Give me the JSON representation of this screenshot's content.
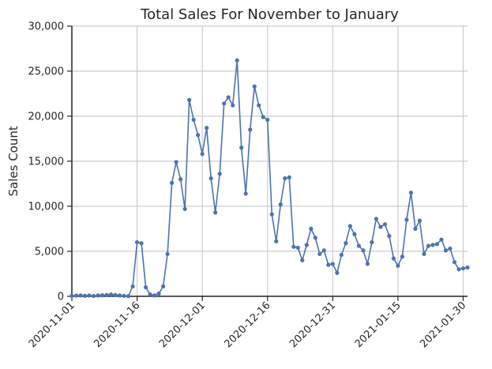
{
  "chart_data": {
    "type": "line",
    "title": "Total Sales For November to January",
    "xlabel": "",
    "ylabel": "Sales Count",
    "ylim": [
      0,
      30000
    ],
    "xlim": [
      "2020-11-01",
      "2021-01-31"
    ],
    "grid": true,
    "x_ticks": [
      "2020-11-01",
      "2020-11-16",
      "2020-12-01",
      "2020-12-16",
      "2020-12-31",
      "2021-01-15",
      "2021-01-30"
    ],
    "y_ticks": [
      "0",
      "5,000",
      "10,000",
      "15,000",
      "20,000",
      "25,000",
      "30,000"
    ],
    "series": [
      {
        "color": "#4c72b0",
        "x": [
          "2020-11-01",
          "2020-11-02",
          "2020-11-03",
          "2020-11-04",
          "2020-11-05",
          "2020-11-06",
          "2020-11-07",
          "2020-11-08",
          "2020-11-09",
          "2020-11-10",
          "2020-11-11",
          "2020-11-12",
          "2020-11-13",
          "2020-11-14",
          "2020-11-15",
          "2020-11-16",
          "2020-11-17",
          "2020-11-18",
          "2020-11-19",
          "2020-11-20",
          "2020-11-21",
          "2020-11-22",
          "2020-11-23",
          "2020-11-24",
          "2020-11-25",
          "2020-11-26",
          "2020-11-27",
          "2020-11-28",
          "2020-11-29",
          "2020-11-30",
          "2020-12-01",
          "2020-12-02",
          "2020-12-03",
          "2020-12-04",
          "2020-12-05",
          "2020-12-06",
          "2020-12-07",
          "2020-12-08",
          "2020-12-09",
          "2020-12-10",
          "2020-12-11",
          "2020-12-12",
          "2020-12-13",
          "2020-12-14",
          "2020-12-15",
          "2020-12-16",
          "2020-12-17",
          "2020-12-18",
          "2020-12-19",
          "2020-12-20",
          "2020-12-21",
          "2020-12-22",
          "2020-12-23",
          "2020-12-24",
          "2020-12-25",
          "2020-12-26",
          "2020-12-27",
          "2020-12-28",
          "2020-12-29",
          "2020-12-30",
          "2020-12-31",
          "2021-01-01",
          "2021-01-02",
          "2021-01-03",
          "2021-01-04",
          "2021-01-05",
          "2021-01-06",
          "2021-01-07",
          "2021-01-08",
          "2021-01-09",
          "2021-01-10",
          "2021-01-11",
          "2021-01-12",
          "2021-01-13",
          "2021-01-14",
          "2021-01-15",
          "2021-01-16",
          "2021-01-17",
          "2021-01-18",
          "2021-01-19",
          "2021-01-20",
          "2021-01-21",
          "2021-01-22",
          "2021-01-23",
          "2021-01-24",
          "2021-01-25",
          "2021-01-26",
          "2021-01-27",
          "2021-01-28",
          "2021-01-29",
          "2021-01-30",
          "2021-01-31"
        ],
        "values": [
          50,
          80,
          100,
          60,
          90,
          40,
          100,
          120,
          150,
          200,
          150,
          100,
          50,
          20,
          1100,
          6000,
          5900,
          1000,
          200,
          100,
          300,
          1100,
          4700,
          12600,
          14900,
          13000,
          9700,
          21800,
          19600,
          17900,
          15800,
          18700,
          13100,
          9300,
          13600,
          21400,
          22100,
          21200,
          26200,
          16500,
          11400,
          18500,
          23300,
          21200,
          19900,
          19600,
          9100,
          6100,
          10200,
          13100,
          13200,
          5500,
          5400,
          4000,
          5700,
          7500,
          6500,
          4700,
          5100,
          3500,
          3600,
          2600,
          4600,
          5900,
          7800,
          6900,
          5600,
          5100,
          3600,
          6000,
          8600,
          7700,
          8000,
          6700,
          4200,
          3400,
          4400,
          8500,
          11500,
          7500,
          8400,
          4700,
          5600,
          5700,
          5800,
          6300,
          5100,
          5300,
          3800,
          3000,
          3100,
          3200
        ]
      }
    ]
  }
}
